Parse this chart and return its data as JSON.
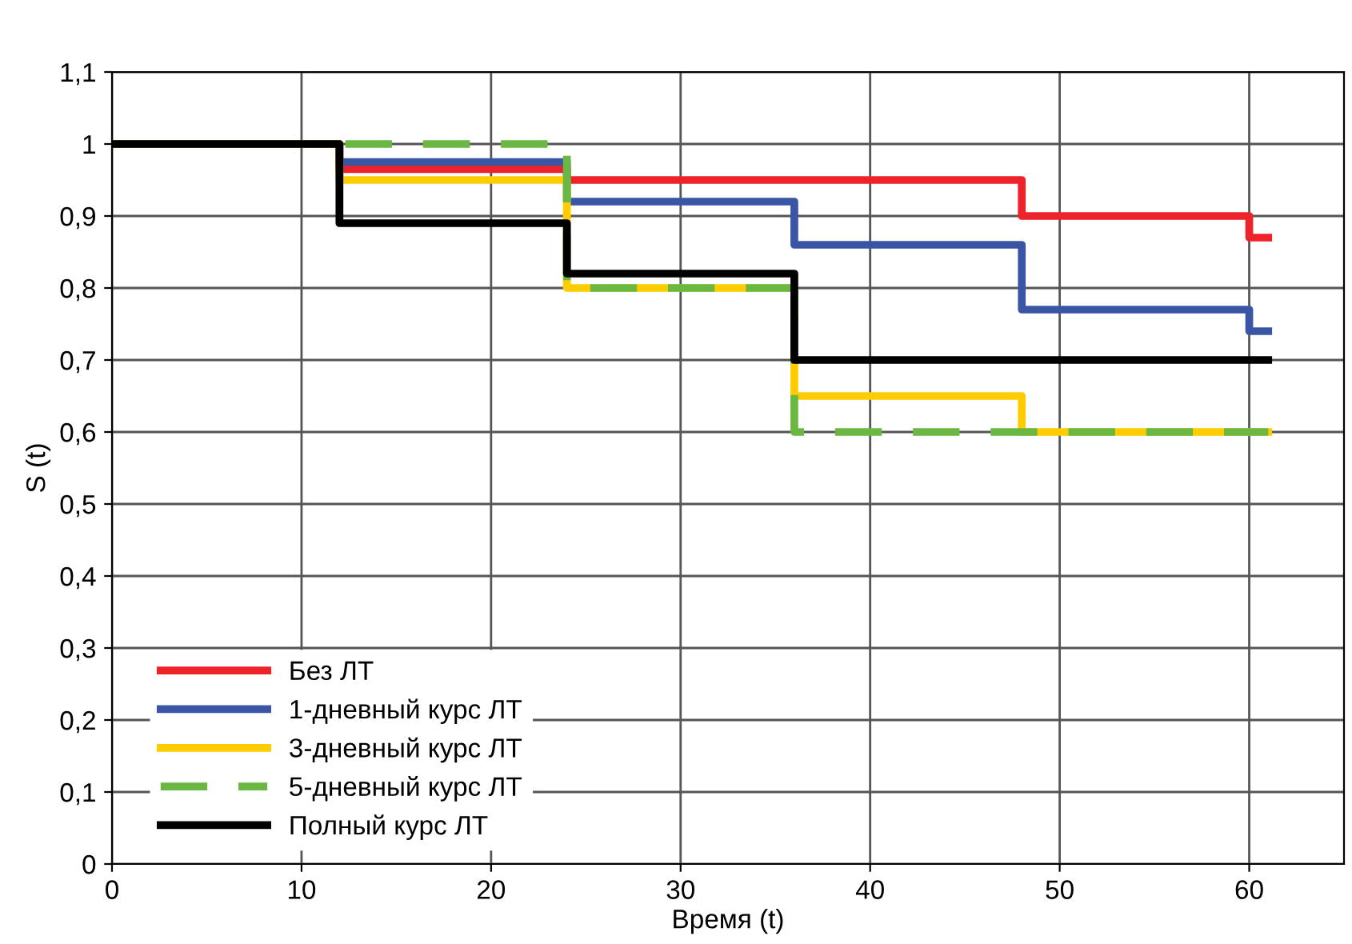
{
  "chart_data": {
    "type": "step",
    "xlabel": "Время (t)",
    "ylabel": "S (t)",
    "x": [
      0,
      12,
      24,
      36,
      48,
      60,
      61
    ],
    "series": [
      {
        "name": "Без ЛТ",
        "color": "#ee2229",
        "values": [
          1,
          0.965,
          0.95,
          0.95,
          0.9,
          0.87,
          0.87
        ]
      },
      {
        "name": "1-дневный курс ЛТ",
        "color": "#3b55a5",
        "values": [
          1,
          0.975,
          0.92,
          0.86,
          0.77,
          0.74,
          0.74
        ]
      },
      {
        "name": "3-дневный курс ЛТ",
        "color": "#ffcc00",
        "values": [
          1,
          0.95,
          0.8,
          0.65,
          0.6,
          0.6,
          0.6
        ]
      },
      {
        "name": "5-дневный курс ЛТ",
        "color": "#6ab843",
        "values": [
          1,
          1,
          0.8,
          0.6,
          0.6,
          0.6,
          0.6
        ],
        "line_style": "dashed"
      },
      {
        "name": "Полный курс ЛТ",
        "color": "#000000",
        "values": [
          1,
          0.89,
          0.82,
          0.7,
          0.7,
          0.7,
          0.7
        ]
      }
    ],
    "xlim": [
      0,
      65
    ],
    "xticks": [
      0,
      10,
      20,
      30,
      40,
      50,
      60
    ],
    "ylim": [
      0,
      1.1
    ],
    "yticks": [
      {
        "value": 0,
        "label": "0"
      },
      {
        "value": 0.1,
        "label": "0,1"
      },
      {
        "value": 0.2,
        "label": "0,2"
      },
      {
        "value": 0.3,
        "label": "0,3"
      },
      {
        "value": 0.4,
        "label": "0,4"
      },
      {
        "value": 0.5,
        "label": "0,5"
      },
      {
        "value": 0.6,
        "label": "0,6"
      },
      {
        "value": 0.7,
        "label": "0,7"
      },
      {
        "value": 0.8,
        "label": "0,8"
      },
      {
        "value": 0.9,
        "label": "0,9"
      },
      {
        "value": 1,
        "label": "1"
      },
      {
        "value": 1.1,
        "label": "1,1"
      }
    ],
    "grid": true,
    "legend": "bottom left",
    "line_style": "solid",
    "marker": "none"
  }
}
